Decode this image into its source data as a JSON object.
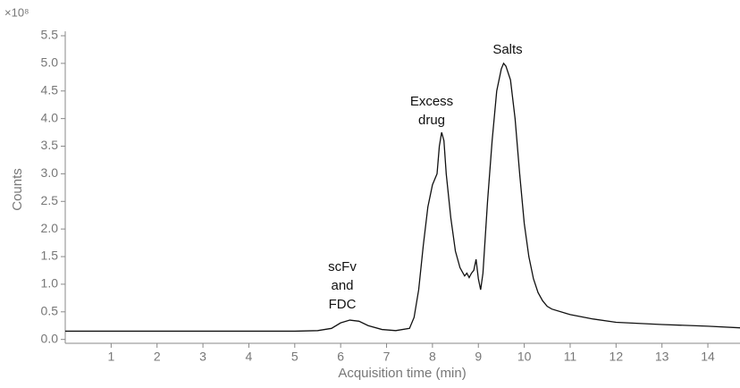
{
  "chart_data": {
    "type": "line",
    "exponent_label": "×10⁸",
    "xlabel": "Acquisition time (min)",
    "ylabel": "Counts",
    "annotations": [
      [
        "scFv",
        "and",
        "FDC"
      ],
      [
        "Excess",
        "drug"
      ],
      [
        "Salts"
      ]
    ],
    "x": [
      0,
      1,
      2,
      3,
      4,
      5,
      5.5,
      5.8,
      6.0,
      6.2,
      6.4,
      6.6,
      6.9,
      7.2,
      7.5,
      7.6,
      7.7,
      7.8,
      7.9,
      8.0,
      8.1,
      8.15,
      8.2,
      8.25,
      8.3,
      8.4,
      8.5,
      8.6,
      8.7,
      8.75,
      8.8,
      8.85,
      8.9,
      8.95,
      9.0,
      9.05,
      9.1,
      9.2,
      9.3,
      9.4,
      9.5,
      9.55,
      9.6,
      9.7,
      9.8,
      9.9,
      10.0,
      10.1,
      10.2,
      10.3,
      10.4,
      10.5,
      10.6,
      11,
      11.5,
      12,
      13,
      14,
      14.7
    ],
    "series": [
      {
        "color": "#111111",
        "values": [
          0.15,
          0.15,
          0.15,
          0.15,
          0.15,
          0.15,
          0.16,
          0.2,
          0.3,
          0.35,
          0.33,
          0.25,
          0.18,
          0.16,
          0.2,
          0.4,
          0.9,
          1.7,
          2.4,
          2.8,
          3.0,
          3.5,
          3.75,
          3.6,
          3.0,
          2.2,
          1.6,
          1.3,
          1.15,
          1.2,
          1.12,
          1.2,
          1.25,
          1.45,
          1.1,
          0.9,
          1.2,
          2.5,
          3.6,
          4.5,
          4.9,
          5.0,
          4.95,
          4.7,
          4.0,
          3.0,
          2.1,
          1.5,
          1.1,
          0.85,
          0.7,
          0.6,
          0.55,
          0.45,
          0.37,
          0.31,
          0.27,
          0.24,
          0.21
        ]
      }
    ],
    "xlim": [
      0,
      14.7
    ],
    "ylim": [
      -0.07,
      5.5
    ],
    "xticks": [
      1,
      2,
      3,
      4,
      5,
      6,
      7,
      8,
      9,
      10,
      11,
      12,
      13,
      14
    ],
    "yticks": [
      0,
      0.5,
      1.0,
      1.5,
      2.0,
      2.5,
      3.0,
      3.5,
      4.0,
      4.5,
      5.0,
      5.5
    ]
  }
}
